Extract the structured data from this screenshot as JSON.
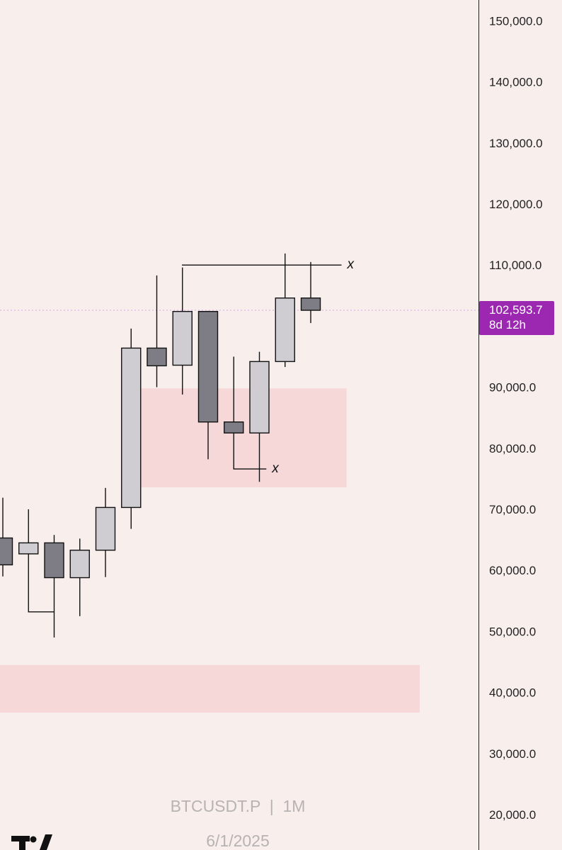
{
  "chart_data": {
    "type": "candlestick",
    "symbol": "BTCUSDT.P",
    "interval": "1M",
    "date": "6/1/2025",
    "ylim": [
      18000,
      152000
    ],
    "y_ticks": [
      150000,
      140000,
      130000,
      120000,
      110000,
      90000,
      80000,
      70000,
      60000,
      50000,
      40000,
      30000,
      20000
    ],
    "y_tick_labels": [
      "150,000.0",
      "140,000.0",
      "130,000.0",
      "120,000.0",
      "110,000.0",
      "90,000.0",
      "80,000.0",
      "70,000.0",
      "60,000.0",
      "50,000.0",
      "40,000.0",
      "30,000.0",
      "20,000.0"
    ],
    "candles": [
      {
        "open": 65300,
        "high": 71900,
        "low": 59000,
        "close": 60900
      },
      {
        "open": 62700,
        "high": 70000,
        "low": 53200,
        "close": 64500
      },
      {
        "open": 64500,
        "high": 65800,
        "low": 49000,
        "close": 58800
      },
      {
        "open": 58800,
        "high": 65200,
        "low": 52500,
        "close": 63300
      },
      {
        "open": 63300,
        "high": 73500,
        "low": 58900,
        "close": 70300
      },
      {
        "open": 70300,
        "high": 99600,
        "low": 66800,
        "close": 96400
      },
      {
        "open": 96400,
        "high": 108300,
        "low": 90000,
        "close": 93500
      },
      {
        "open": 93600,
        "high": 109600,
        "low": 88800,
        "close": 102400
      },
      {
        "open": 102400,
        "high": 102500,
        "low": 78200,
        "close": 84300
      },
      {
        "open": 84300,
        "high": 95000,
        "low": 76600,
        "close": 82500
      },
      {
        "open": 82500,
        "high": 95800,
        "low": 74500,
        "close": 94200
      },
      {
        "open": 94200,
        "high": 111900,
        "low": 93300,
        "close": 104600
      },
      {
        "open": 104600,
        "high": 110500,
        "low": 100500,
        "close": 102594
      }
    ],
    "zones": [
      {
        "y_top": 89800,
        "y_bottom": 73600,
        "x_from": 4.65,
        "x_to": 13.4
      },
      {
        "y_top": 44500,
        "y_bottom": 36700,
        "x_from": -1,
        "x_to": 16.25
      }
    ],
    "markers": [
      {
        "price": 110000,
        "from_candle": 6.98,
        "to_candle": 13.2,
        "label": "x"
      },
      {
        "price": 76600,
        "from_candle": 8.98,
        "to_candle": 10.27,
        "label": "x"
      }
    ],
    "lower_marker": {
      "price": 53200,
      "from_candle": 0.98,
      "to_candle": 2.0
    },
    "current_price": 102594,
    "current_price_label": "102,593.7",
    "countdown_label": "8d 12h",
    "colors": {
      "background": "#f8efed",
      "bull_body": "#cfcdd1",
      "bear_body": "#7e7d86",
      "outline": "#111111",
      "zone": "#f7d8d8",
      "price_badge": "#9c27b0",
      "price_line": "#d9a4e6"
    }
  },
  "watermark": {
    "symbol_line": "BTCUSDT.P  |  1M",
    "date_line": "6/1/2025",
    "logo": "tradingview-logo"
  }
}
